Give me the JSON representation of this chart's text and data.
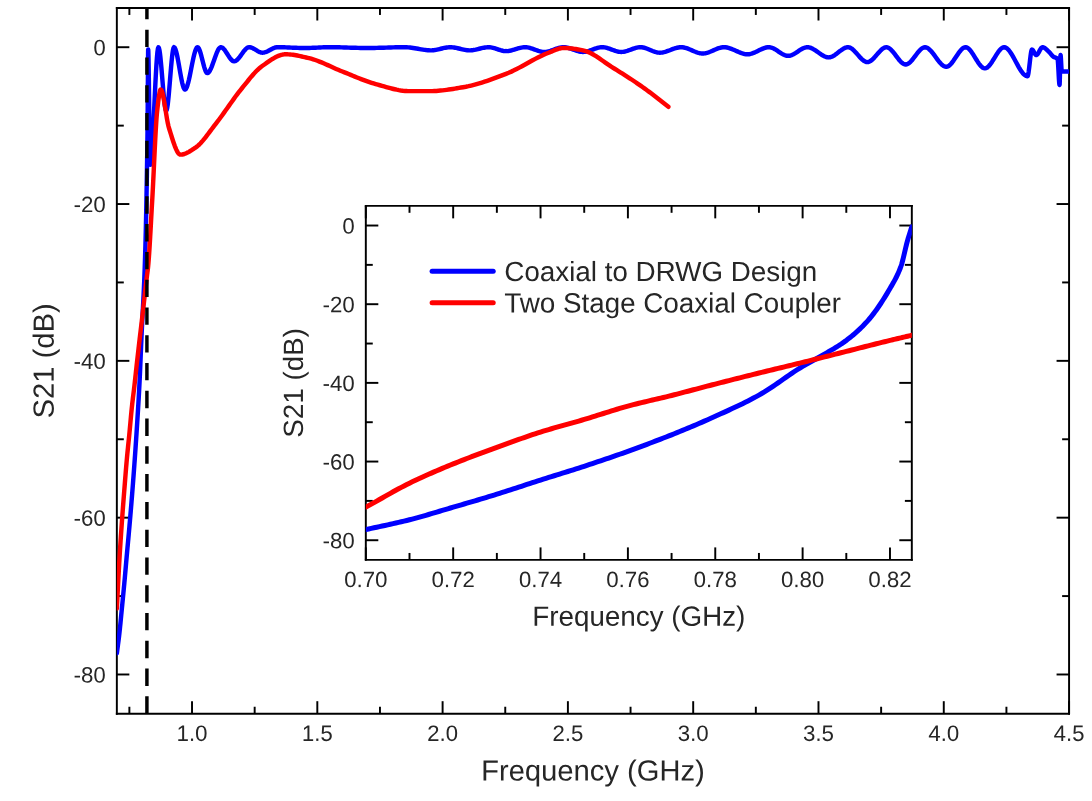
{
  "chart_data": [
    {
      "type": "line",
      "xlabel": "Frequency (GHz)",
      "ylabel": "S21 (dB)",
      "xlim": [
        0.7,
        4.5
      ],
      "ylim": [
        -85,
        5
      ],
      "xticks": [
        {
          "value": 1,
          "label": "1.0"
        },
        1.5,
        {
          "value": 2,
          "label": "2.0"
        },
        2.5,
        {
          "value": 3,
          "label": "3.0"
        },
        3.5,
        {
          "value": 4,
          "label": "4.0"
        },
        4.5
      ],
      "yticks": [
        -80,
        -60,
        -40,
        -20,
        0
      ],
      "ref_lines": [
        {
          "axis": "x",
          "value": 0.82,
          "color": "#000000",
          "line_style": "dashed"
        }
      ],
      "series": [
        {
          "color": "#0000ff",
          "x": [
            0.7,
            0.71,
            0.72,
            0.73,
            0.74,
            0.75,
            0.76,
            0.77,
            0.78,
            0.79,
            0.8,
            0.805,
            0.81,
            0.815,
            0.82,
            0.8225,
            0.824,
            0.825,
            0.833,
            0.866,
            0.897,
            0.928,
            0.972,
            1.022,
            1.061,
            1.115,
            1.168,
            1.228,
            1.281,
            1.341,
            1.45,
            1.55,
            1.7,
            1.85,
            1.954,
            2.031,
            2.108,
            2.184,
            2.253,
            2.329,
            2.406,
            2.483,
            2.56,
            2.637,
            2.713,
            2.79,
            2.867,
            2.952,
            3.038,
            3.123,
            3.217,
            3.302,
            3.379,
            3.456,
            3.541,
            3.618,
            3.695,
            3.771,
            3.848,
            3.925,
            4.01,
            4.087,
            4.164,
            4.241,
            4.334,
            4.352,
            4.369,
            4.394,
            4.42,
            4.437,
            4.454,
            4.462,
            4.466,
            4.471,
            4.5
          ],
          "values": [
            -77.3,
            -74.8,
            -71.6,
            -68.3,
            -64.7,
            -61.2,
            -57.4,
            -53.2,
            -48.5,
            -43.1,
            -35.8,
            -32.7,
            -29.2,
            -24.1,
            -16,
            -10.4,
            -3.9,
            -0.3,
            -15,
            0,
            -8.1,
            0,
            -5.4,
            0,
            -3.3,
            0,
            -1.8,
            0,
            -0.7,
            0,
            -0.1,
            0,
            -0.1,
            0,
            -0.4,
            0,
            -0.4,
            0,
            -0.5,
            0,
            -0.6,
            0,
            -0.6,
            0,
            -0.6,
            0,
            -0.7,
            0,
            -0.8,
            0,
            -0.9,
            0,
            -1.1,
            0,
            -1.3,
            0,
            -1.9,
            0,
            -2.2,
            0,
            -2.5,
            0,
            -2.7,
            0,
            -3.7,
            -0.3,
            -1,
            0,
            -0.6,
            -1.2,
            -1.5,
            -4.8,
            -1,
            -3.1,
            -3.1
          ]
        },
        {
          "color": "#ff0000",
          "x": [
            0.7,
            0.71,
            0.72,
            0.73,
            0.74,
            0.75,
            0.76,
            0.77,
            0.78,
            0.79,
            0.8,
            0.81,
            0.82,
            0.825,
            0.841,
            0.861,
            0.875,
            0.908,
            0.954,
            1.014,
            1.094,
            1.2,
            1.28,
            1.374,
            1.467,
            1.6,
            1.733,
            1.867,
            1.95,
            2.082,
            2.253,
            2.423,
            2.483,
            2.56,
            2.679,
            2.799,
            2.901
          ],
          "values": [
            -71.6,
            -65.5,
            -60.6,
            -56.4,
            -52.5,
            -49.3,
            -45.9,
            -43.2,
            -40.3,
            -37.5,
            -34.8,
            -32.0,
            -29.2,
            -27.9,
            -19.6,
            -8.1,
            -5.4,
            -10.3,
            -13.7,
            -12.8,
            -9.8,
            -5.2,
            -2.4,
            -0.9,
            -1.4,
            -3.1,
            -4.7,
            -5.6,
            -5.6,
            -5.1,
            -3.4,
            -0.7,
            -0.1,
            -0.4,
            -2.6,
            -5.1,
            -7.6
          ]
        }
      ]
    },
    {
      "type": "line",
      "xlabel": "Frequency (GHz)",
      "ylabel": "S21 (dB)",
      "xlim": [
        0.7,
        0.825
      ],
      "ylim": [
        -85,
        5
      ],
      "xticks": [
        {
          "value": 0.7,
          "label": "0.70"
        },
        0.72,
        0.74,
        0.76,
        0.78,
        {
          "value": 0.8,
          "label": "0.80"
        },
        0.82
      ],
      "yticks": [
        -80,
        -60,
        -40,
        -20,
        0
      ],
      "legend": "top left",
      "series": [
        {
          "name": "Coaxial to DRWG Design",
          "color": "#0000ff",
          "x": [
            0.7,
            0.71,
            0.72,
            0.73,
            0.74,
            0.75,
            0.76,
            0.77,
            0.78,
            0.79,
            0.8,
            0.805,
            0.81,
            0.815,
            0.82,
            0.8225,
            0.824,
            0.825
          ],
          "values": [
            -77.3,
            -74.8,
            -71.6,
            -68.3,
            -64.7,
            -61.2,
            -57.4,
            -53.2,
            -48.5,
            -43.1,
            -35.8,
            -32.7,
            -29.2,
            -24.1,
            -16,
            -10.4,
            -3.9,
            -0.3
          ]
        },
        {
          "name": "Two Stage Coaxial Coupler",
          "color": "#ff0000",
          "x": [
            0.7,
            0.71,
            0.72,
            0.73,
            0.74,
            0.75,
            0.76,
            0.77,
            0.78,
            0.79,
            0.8,
            0.81,
            0.82,
            0.825
          ],
          "values": [
            -71.6,
            -65.5,
            -60.6,
            -56.4,
            -52.5,
            -49.3,
            -45.9,
            -43.2,
            -40.3,
            -37.5,
            -34.8,
            -32.0,
            -29.2,
            -27.9
          ]
        }
      ]
    }
  ]
}
